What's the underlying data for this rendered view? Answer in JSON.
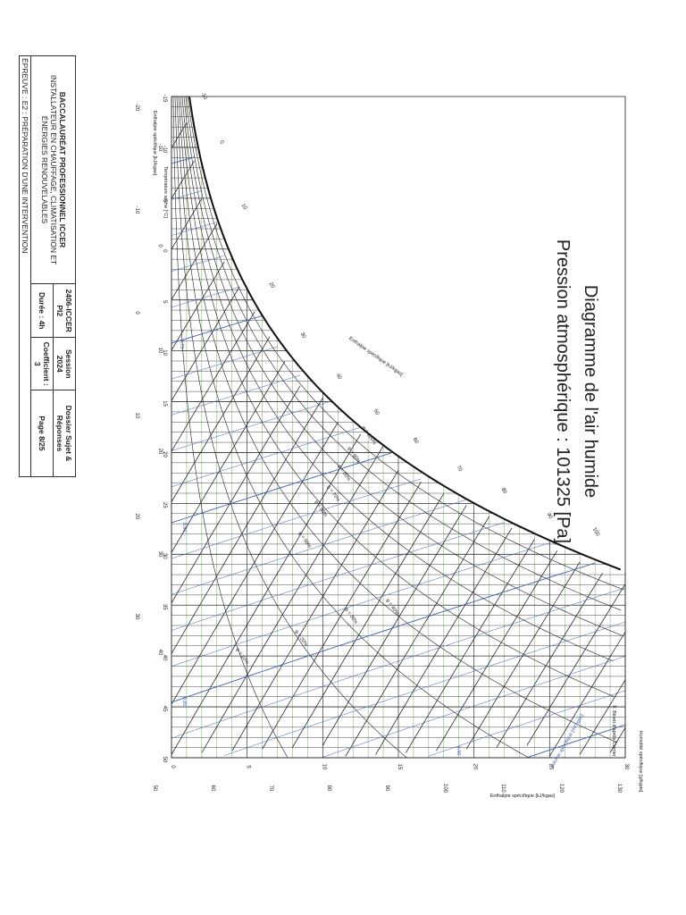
{
  "title": {
    "line1": "Diagramme de l'air humide",
    "line2": "Pression atmosphérique : 101325 [Pa]"
  },
  "cartouche": {
    "exam_title": "BACCALAURÉAT PROFESSIONNEL ICCER",
    "exam_subtitle": "INSTALLATEUR EN CHAUFFAGE, CLIMATISATION ET ÉNERGIES RENOUVELABLES",
    "epreuve": "ÉPREUVE : E2 : PRÉPARATION D'UNE INTERVENTION",
    "code": "2406-ICCER PI2",
    "session": "Session 2024",
    "dossier": "Dossier Sujet & Réponses",
    "duree": "Durée : 4h",
    "coefficient": "Coefficient : 3",
    "page": "Page 8/25"
  },
  "chart": {
    "axis_dry_temp_label": "Température sèche [°C]",
    "axis_enthalpy_left_label": "Enthalpie spécifique [kJ/kgas]",
    "axis_enthalpy_curve_label": "Enthalpie spécifique [kJ/kgas]",
    "axis_enthalpy_bottom_label": "Enthalpie spécifique [kJ/kgas]",
    "axis_humidity_label": "Humidité spécifique [g/kgas]",
    "author": "F. Bineti d'après Carrier",
    "volume_label": "Volume spécifique [m³/kgas]",
    "dry_temp_ticks": [
      "-15",
      "-10",
      "-5",
      "0",
      "5",
      "10",
      "15",
      "20",
      "25",
      "30",
      "35",
      "40",
      "45",
      "50"
    ],
    "enthalpy_left_ticks": [
      "-20",
      "-10",
      "-10",
      "0",
      "0",
      "10",
      "10",
      "20",
      "20",
      "30",
      "30",
      "40"
    ],
    "enthalpy_curve_ticks": [
      "-10",
      "0",
      "10",
      "20",
      "30",
      "40",
      "50",
      "60",
      "70",
      "80",
      "90",
      "100"
    ],
    "humidity_ticks": [
      "0",
      "5",
      "10",
      "15",
      "20",
      "25",
      "30"
    ],
    "enthalpy_bottom_ticks": [
      "50",
      "60",
      "70",
      "80",
      "90",
      "100",
      "110",
      "120",
      "130"
    ],
    "rh_labels": [
      "φ = 100%",
      "φ = 90%",
      "φ = 80%",
      "φ = 70%",
      "φ = 60%",
      "φ = 50%",
      "φ = 40%",
      "φ = 30%",
      "φ = 20%",
      "φ = 10%"
    ],
    "volume_ticks": [
      "0,75",
      "0,80",
      "0,85",
      "0,90"
    ]
  }
}
